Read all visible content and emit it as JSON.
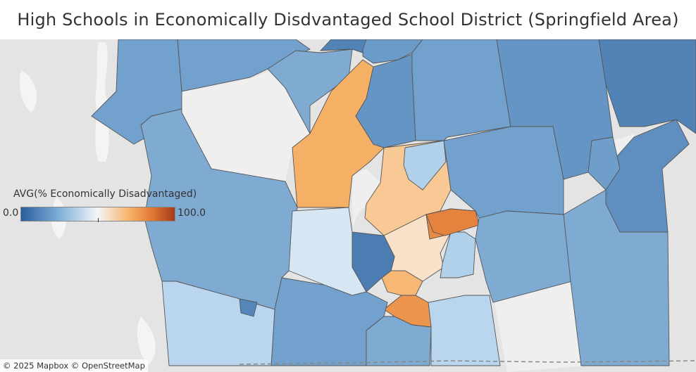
{
  "title": "High Schools in Economically Disdvantaged School District (Springfield Area)",
  "legend": {
    "title": "AVG(% Economically Disadvantaged)",
    "min_label": "0.0",
    "max_label": "100.0",
    "color_low": "#2a5e9c",
    "color_mid": "#f4f6f8",
    "color_high": "#a63b1a"
  },
  "attribution": "© 2025 Mapbox © OpenStreetMap",
  "colors": {
    "background": "#e2e2e2",
    "land_light": "#efefef",
    "water": "#ffffff",
    "border": "#555555"
  },
  "chart_data": {
    "type": "choropleth",
    "measure": "AVG(% Economically Disadvantaged)",
    "color_range": [
      0,
      100
    ],
    "regions": [
      {
        "id": "r01",
        "value": 22
      },
      {
        "id": "r02",
        "value": 22
      },
      {
        "id": "r03",
        "value": 25
      },
      {
        "id": "r04",
        "value": 12
      },
      {
        "id": "r05",
        "value": 20
      },
      {
        "id": "r06",
        "value": 12
      },
      {
        "id": "r07",
        "value": 70
      },
      {
        "id": "r08",
        "value": 18
      },
      {
        "id": "r09",
        "value": 22
      },
      {
        "id": "r10",
        "value": 18
      },
      {
        "id": "r11",
        "value": 25
      },
      {
        "id": "r12",
        "value": 64
      },
      {
        "id": "r13",
        "value": 57
      },
      {
        "id": "r14",
        "value": 38
      },
      {
        "id": "r15",
        "value": 22
      },
      {
        "id": "r16",
        "value": 20
      },
      {
        "id": "r17",
        "value": 45
      },
      {
        "id": "r18",
        "value": 80
      },
      {
        "id": "r19",
        "value": 38
      },
      {
        "id": "r20",
        "value": 68
      },
      {
        "id": "r21",
        "value": 77
      },
      {
        "id": "r22",
        "value": 82
      },
      {
        "id": "r23",
        "value": 10
      },
      {
        "id": "r24",
        "value": 25
      },
      {
        "id": "r25",
        "value": 25
      },
      {
        "id": "r26",
        "value": 16
      },
      {
        "id": "r27",
        "value": 22
      },
      {
        "id": "r28",
        "value": 25
      },
      {
        "id": "r29",
        "value": 40
      },
      {
        "id": "r30",
        "value": 40
      },
      {
        "id": "r31",
        "value": 13
      },
      {
        "id": "r32",
        "value": 21
      }
    ]
  }
}
